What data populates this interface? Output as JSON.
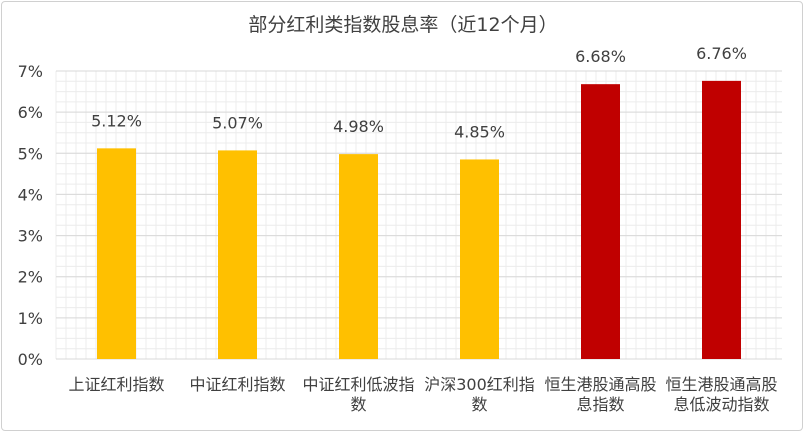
{
  "chart_data": {
    "type": "bar",
    "title": "部分红利类指数股息率（近12个月）",
    "categories": [
      [
        "上证红利指数"
      ],
      [
        "中证红利指数"
      ],
      [
        "中证红利低波指",
        "数"
      ],
      [
        "沪深300红利指",
        "数"
      ],
      [
        "恒生港股通高股",
        "息指数"
      ],
      [
        "恒生港股通高股",
        "息低波动指数"
      ]
    ],
    "values": [
      5.12,
      5.07,
      4.98,
      4.85,
      6.68,
      6.76
    ],
    "data_labels": [
      "5.12%",
      "5.07%",
      "4.98%",
      "4.85%",
      "6.68%",
      "6.76%"
    ],
    "colors": [
      "#FFC000",
      "#FFC000",
      "#FFC000",
      "#FFC000",
      "#C00000",
      "#C00000"
    ],
    "ylim": [
      0,
      7
    ],
    "yticks": [
      0,
      1,
      2,
      3,
      4,
      5,
      6,
      7
    ],
    "ytick_labels": [
      "0%",
      "1%",
      "2%",
      "3%",
      "4%",
      "5%",
      "6%",
      "7%"
    ],
    "xlabel": "",
    "ylabel": "",
    "grid": true,
    "legend": "none"
  }
}
